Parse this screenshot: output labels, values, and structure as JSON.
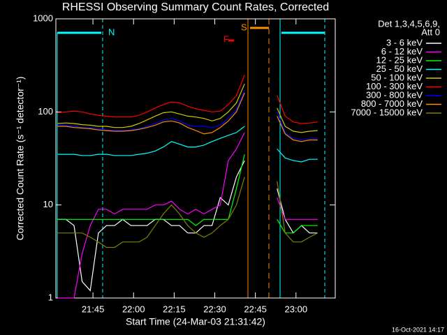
{
  "chart_data": {
    "type": "line",
    "title": "RHESSI Observing Summary Count Rates, Corrected",
    "x_label": "Start Time (24-Mar-03 21:31:42)",
    "y_label": "Corrected Count Rate (s⁻¹ detector⁻¹)",
    "legend_title": [
      "Det 1,3,4,5,6,9,",
      "Att 0"
    ],
    "footer": "16-Oct-2021 14:17",
    "annotations": [
      {
        "text": "N",
        "color": "#00ffff"
      },
      {
        "text": "S",
        "color": "#ff8c00"
      },
      {
        "text": "F",
        "color": "#ff0000"
      }
    ],
    "ylog": true,
    "xlim": [
      1291.3,
      1394.5
    ],
    "xticks": [
      {
        "value": 1305,
        "label": "21:45"
      },
      {
        "value": 1320,
        "label": "22:00"
      },
      {
        "value": 1335,
        "label": "22:15"
      },
      {
        "value": 1350,
        "label": "22:30"
      },
      {
        "value": 1365,
        "label": "22:45"
      },
      {
        "value": 1380,
        "label": "23:00"
      }
    ],
    "ylim": [
      1,
      1000
    ],
    "yticks": [
      1,
      10,
      100,
      1000
    ],
    "x": [
      1292,
      1295,
      1298,
      1301,
      1304,
      1307,
      1310,
      1313,
      1316,
      1319,
      1322,
      1325,
      1328,
      1331,
      1334,
      1337,
      1340,
      1343,
      1346,
      1349,
      1352,
      1355,
      1358,
      1361,
      1364,
      1367,
      1370,
      1373,
      1376,
      1379,
      1382,
      1385,
      1388,
      1391
    ],
    "series": [
      {
        "name": "3 - 6 keV",
        "color": "#000000",
        "values": [
          7,
          7,
          6,
          1.5,
          1.2,
          5,
          6,
          6,
          7,
          6,
          6,
          6,
          7,
          7,
          6,
          6,
          5,
          5,
          6,
          6,
          12,
          10,
          20,
          30,
          null,
          null,
          null,
          15,
          7,
          5,
          6,
          5,
          5,
          null
        ]
      },
      {
        "name": "6 - 12 keV",
        "color": "#ff00ff",
        "values": [
          1,
          1,
          1,
          3,
          6,
          9,
          9,
          8,
          9,
          9,
          9,
          9,
          10,
          10,
          11,
          9,
          8,
          9,
          8,
          9,
          10,
          30,
          40,
          60,
          null,
          null,
          null,
          12,
          7,
          7,
          7,
          7,
          7,
          null
        ]
      },
      {
        "name": "12 - 25 keV",
        "color": "#00ff00",
        "values": [
          7,
          7,
          7,
          7,
          7,
          7,
          7,
          7,
          7,
          7,
          7,
          7,
          7,
          7,
          7,
          7,
          7,
          6,
          7,
          7,
          7,
          7,
          15,
          35,
          null,
          null,
          null,
          7,
          5,
          5,
          6,
          6,
          6,
          null
        ]
      },
      {
        "name": "25 - 50 keV",
        "color": "#00ffff",
        "values": [
          35,
          35,
          35,
          34,
          34,
          35,
          35,
          34,
          34,
          34,
          35,
          36,
          38,
          42,
          48,
          45,
          42,
          42,
          44,
          48,
          52,
          56,
          60,
          70,
          null,
          null,
          null,
          40,
          32,
          30,
          29,
          31,
          31,
          null
        ]
      },
      {
        "name": "50 - 100 keV",
        "color": "#cccc00",
        "values": [
          75,
          76,
          75,
          73,
          72,
          70,
          70,
          68,
          68,
          70,
          75,
          82,
          90,
          98,
          100,
          95,
          90,
          88,
          85,
          80,
          85,
          100,
          125,
          200,
          null,
          null,
          null,
          110,
          70,
          62,
          60,
          62,
          63,
          null
        ]
      },
      {
        "name": "100 - 300 keV",
        "color": "#ff0000",
        "values": [
          98,
          100,
          102,
          100,
          95,
          92,
          90,
          88,
          88,
          88,
          92,
          100,
          110,
          120,
          128,
          125,
          115,
          108,
          104,
          100,
          102,
          120,
          150,
          250,
          null,
          null,
          null,
          150,
          90,
          78,
          75,
          76,
          78,
          null
        ]
      },
      {
        "name": "300 - 800 keV",
        "color": "#0000ff",
        "values": [
          72,
          72,
          70,
          68,
          67,
          66,
          64,
          64,
          63,
          64,
          66,
          70,
          75,
          82,
          85,
          80,
          72,
          70,
          70,
          68,
          72,
          85,
          105,
          170,
          null,
          null,
          null,
          100,
          60,
          52,
          50,
          52,
          52,
          null
        ]
      },
      {
        "name": "800 - 7000 keV",
        "color": "#ff8c00",
        "values": [
          70,
          70,
          68,
          67,
          66,
          64,
          63,
          62,
          62,
          63,
          65,
          68,
          72,
          78,
          80,
          76,
          68,
          63,
          58,
          60,
          68,
          80,
          100,
          160,
          null,
          null,
          null,
          90,
          58,
          50,
          48,
          50,
          50,
          null
        ]
      },
      {
        "name": "7000 - 15000 keV",
        "color": "#808000",
        "values": [
          5,
          5,
          5,
          5,
          4.5,
          4,
          3.5,
          3.5,
          4,
          4,
          4,
          4.5,
          6,
          8,
          10,
          8,
          6,
          5,
          4.5,
          5,
          6,
          7,
          10,
          20,
          null,
          null,
          null,
          18,
          5,
          4,
          4,
          4.5,
          5,
          null
        ]
      }
    ]
  }
}
